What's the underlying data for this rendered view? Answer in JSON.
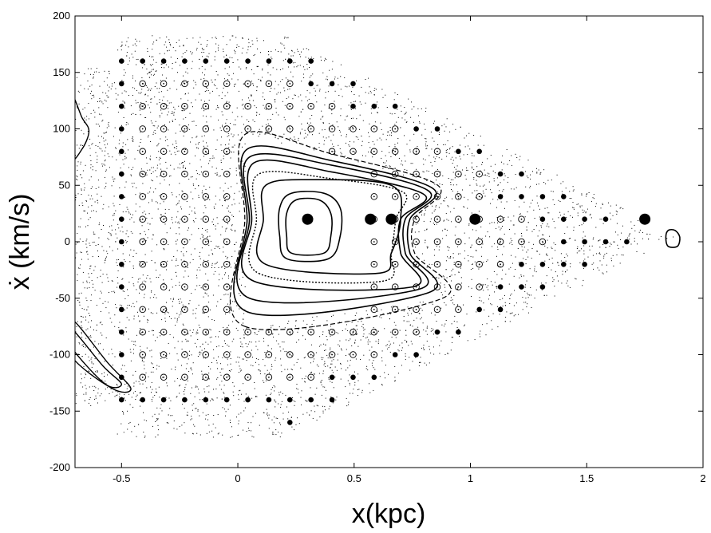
{
  "chart_data": {
    "type": "scatter",
    "title": "",
    "xlabel": "x(kpc)",
    "ylabel": "ẋ (km/s)",
    "xlim": [
      -0.7,
      2.0
    ],
    "ylim": [
      -200,
      200
    ],
    "x_ticks": [
      -0.5,
      0,
      0.5,
      1,
      1.5,
      2
    ],
    "x_tick_labels": [
      "-0.5",
      "0",
      "0.5",
      "1",
      "1.5",
      "2"
    ],
    "y_ticks": [
      -200,
      -150,
      -100,
      -50,
      0,
      50,
      100,
      150,
      200
    ],
    "y_tick_labels": [
      "-200",
      "-150",
      "-100",
      "-50",
      "0",
      "50",
      "100",
      "150",
      "200"
    ],
    "grid": false,
    "legend": "none",
    "grid_spacing": {
      "x": 0.0905,
      "y": 20
    },
    "large_filled_markers": [
      {
        "x": 0.3,
        "y": 20
      },
      {
        "x": 0.57,
        "y": 20
      },
      {
        "x": 0.66,
        "y": 20
      },
      {
        "x": 1.02,
        "y": 20
      },
      {
        "x": 1.75,
        "y": 20
      }
    ],
    "regular_orbit_curves": [
      {
        "name": "inner-1",
        "points": [
          [
            0.23,
            -10
          ],
          [
            0.37,
            -10
          ],
          [
            0.4,
            5
          ],
          [
            0.4,
            25
          ],
          [
            0.35,
            37
          ],
          [
            0.25,
            37
          ],
          [
            0.21,
            25
          ],
          [
            0.21,
            5
          ]
        ]
      },
      {
        "name": "inner-2",
        "points": [
          [
            0.21,
            -15
          ],
          [
            0.39,
            -15
          ],
          [
            0.44,
            5
          ],
          [
            0.44,
            30
          ],
          [
            0.37,
            43
          ],
          [
            0.23,
            43
          ],
          [
            0.18,
            30
          ],
          [
            0.18,
            5
          ]
        ]
      },
      {
        "name": "mid-1",
        "points": [
          [
            0.12,
            -20
          ],
          [
            0.6,
            -28
          ],
          [
            0.66,
            -10
          ],
          [
            0.7,
            20
          ],
          [
            0.66,
            50
          ],
          [
            0.32,
            55
          ],
          [
            0.12,
            50
          ],
          [
            0.11,
            20
          ]
        ]
      },
      {
        "name": "dotted-1",
        "points": [
          [
            0.09,
            -28
          ],
          [
            0.62,
            -35
          ],
          [
            0.66,
            -10
          ],
          [
            0.68,
            20
          ],
          [
            0.71,
            44
          ],
          [
            0.4,
            56
          ],
          [
            0.09,
            60
          ],
          [
            0.08,
            20
          ]
        ]
      },
      {
        "name": "outer-1",
        "points": [
          [
            0.07,
            -35
          ],
          [
            0.75,
            -40
          ],
          [
            0.7,
            -10
          ],
          [
            0.7,
            20
          ],
          [
            0.8,
            42
          ],
          [
            0.4,
            62
          ],
          [
            0.07,
            70
          ],
          [
            0.06,
            20
          ]
        ]
      },
      {
        "name": "outer-2",
        "points": [
          [
            0.05,
            -50
          ],
          [
            0.78,
            -42
          ],
          [
            0.72,
            -10
          ],
          [
            0.72,
            20
          ],
          [
            0.82,
            45
          ],
          [
            0.4,
            68
          ],
          [
            0.05,
            75
          ],
          [
            0.05,
            20
          ]
        ]
      },
      {
        "name": "outer-3",
        "points": [
          [
            0.04,
            -62
          ],
          [
            0.82,
            -45
          ],
          [
            0.74,
            -10
          ],
          [
            0.74,
            20
          ],
          [
            0.84,
            47
          ],
          [
            0.4,
            72
          ],
          [
            0.04,
            82
          ],
          [
            0.04,
            20
          ]
        ]
      },
      {
        "name": "outer-dashed",
        "points": [
          [
            0.03,
            -75
          ],
          [
            0.88,
            -50
          ],
          [
            0.76,
            -10
          ],
          [
            0.76,
            20
          ],
          [
            0.86,
            50
          ],
          [
            0.4,
            78
          ],
          [
            0.03,
            95
          ],
          [
            0.03,
            20
          ]
        ]
      },
      {
        "name": "right-island",
        "points": [
          [
            1.85,
            -4
          ],
          [
            1.89,
            -4
          ],
          [
            1.9,
            4
          ],
          [
            1.88,
            10
          ],
          [
            1.85,
            10
          ],
          [
            1.84,
            4
          ]
        ]
      },
      {
        "name": "left-top-curve",
        "points": [
          [
            -0.72,
            130
          ],
          [
            -0.67,
            110
          ],
          [
            -0.64,
            98
          ],
          [
            -0.67,
            82
          ],
          [
            -0.72,
            75
          ]
        ]
      },
      {
        "name": "left-bottom-curve-1",
        "points": [
          [
            -0.72,
            -68
          ],
          [
            -0.56,
            -107
          ],
          [
            -0.46,
            -130
          ],
          [
            -0.54,
            -130
          ],
          [
            -0.72,
            -100
          ]
        ]
      },
      {
        "name": "left-bottom-curve-2",
        "points": [
          [
            -0.72,
            -76
          ],
          [
            -0.58,
            -110
          ],
          [
            -0.5,
            -126
          ],
          [
            -0.57,
            -126
          ],
          [
            -0.72,
            -92
          ]
        ]
      }
    ]
  }
}
